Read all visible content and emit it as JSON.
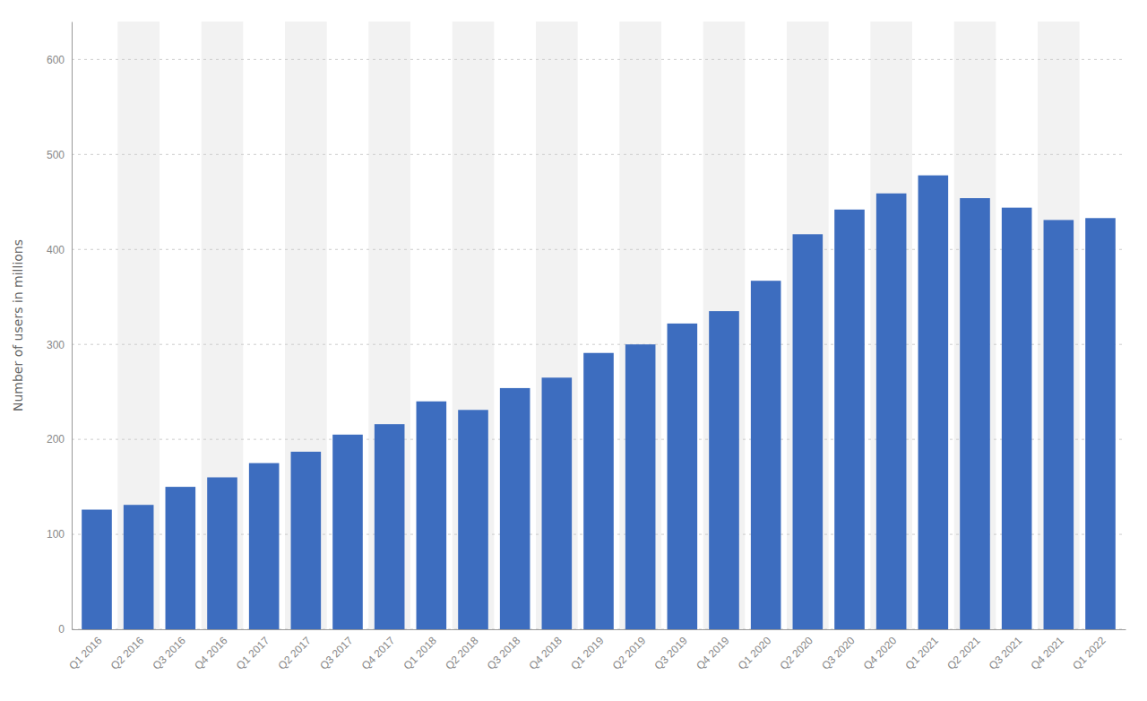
{
  "chart_data": {
    "type": "bar",
    "ylabel": "Number of users in millions",
    "categories": [
      "Q1 2016",
      "Q2 2016",
      "Q3 2016",
      "Q4 2016",
      "Q1 2017",
      "Q2 2017",
      "Q3 2017",
      "Q4 2017",
      "Q1 2018",
      "Q2 2018",
      "Q3 2018",
      "Q4 2018",
      "Q1 2019",
      "Q2 2019",
      "Q3 2019",
      "Q4 2019",
      "Q1 2020",
      "Q2 2020",
      "Q3 2020",
      "Q4 2020",
      "Q1 2021",
      "Q2 2021",
      "Q3 2021",
      "Q4 2021",
      "Q1 2022"
    ],
    "values": [
      126,
      131,
      150,
      160,
      175,
      187,
      205,
      216,
      240,
      231,
      254,
      265,
      291,
      300,
      322,
      335,
      367,
      416,
      442,
      459,
      478,
      454,
      444,
      431,
      433
    ],
    "color": "#3d6dbf",
    "ylim": [
      0,
      640
    ],
    "yticks": [
      0,
      100,
      200,
      300,
      400,
      500,
      600
    ],
    "grid": true
  }
}
